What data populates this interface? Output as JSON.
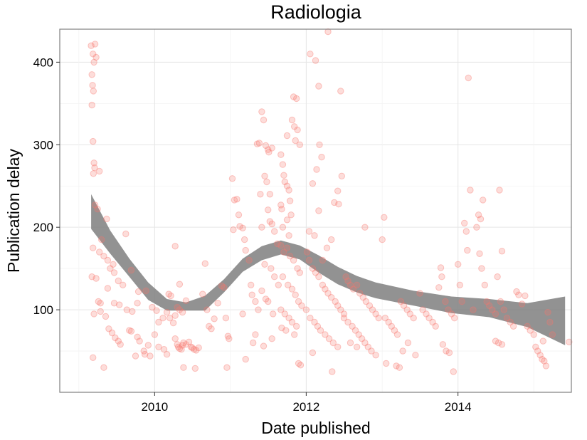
{
  "chart_data": {
    "type": "scatter",
    "title": "Radiologia",
    "xlabel": "Date published",
    "ylabel": "Publication delay",
    "x_axis_type": "date",
    "xlim": [
      "2008-10-01",
      "2015-07-01"
    ],
    "ylim": [
      0,
      440
    ],
    "x_ticks": [
      {
        "value": "2010-01-01",
        "label": "2010"
      },
      {
        "value": "2012-01-01",
        "label": "2012"
      },
      {
        "value": "2014-01-01",
        "label": "2014"
      }
    ],
    "y_ticks": [
      {
        "value": 100,
        "label": "100"
      },
      {
        "value": 200,
        "label": "200"
      },
      {
        "value": 300,
        "label": "300"
      },
      {
        "value": 400,
        "label": "400"
      }
    ],
    "grid": true,
    "legend": "none",
    "point_color": "#f8766d",
    "point_opacity": 0.25,
    "ribbon_color": "#7f7f7f",
    "smooth": {
      "x": [
        "2009-03-01",
        "2009-06-01",
        "2009-09-01",
        "2009-12-01",
        "2010-03-01",
        "2010-06-01",
        "2010-09-01",
        "2010-12-01",
        "2011-03-01",
        "2011-06-01",
        "2011-09-01",
        "2011-12-01",
        "2012-03-01",
        "2012-06-01",
        "2012-09-01",
        "2012-12-01",
        "2013-06-01",
        "2013-12-01",
        "2014-06-01",
        "2014-12-01",
        "2015-06-01"
      ],
      "lower": [
        198,
        168,
        140,
        112,
        99,
        99,
        99,
        121,
        146,
        160,
        167,
        161,
        145,
        131,
        121,
        114,
        105,
        96,
        91,
        79,
        57
      ],
      "upper": [
        240,
        196,
        162,
        133,
        113,
        109,
        117,
        137,
        162,
        177,
        184,
        178,
        166,
        152,
        141,
        133,
        123,
        116,
        113,
        108,
        116
      ]
    },
    "points": [
      [
        "2009-03-01",
        420
      ],
      [
        "2009-03-10",
        410
      ],
      [
        "2009-03-15",
        400
      ],
      [
        "2009-03-05",
        385
      ],
      [
        "2009-03-08",
        372
      ],
      [
        "2009-03-12",
        365
      ],
      [
        "2009-03-05",
        348
      ],
      [
        "2009-03-20",
        422
      ],
      [
        "2009-03-25",
        406
      ],
      [
        "2009-03-10",
        304
      ],
      [
        "2009-03-15",
        278
      ],
      [
        "2009-03-18",
        272
      ],
      [
        "2009-03-12",
        265
      ],
      [
        "2009-04-10",
        268
      ],
      [
        "2009-03-20",
        227
      ],
      [
        "2009-04-01",
        222
      ],
      [
        "2009-05-15",
        210
      ],
      [
        "2009-03-10",
        175
      ],
      [
        "2009-04-10",
        170
      ],
      [
        "2009-05-01",
        165
      ],
      [
        "2009-05-20",
        160
      ],
      [
        "2009-06-15",
        155
      ],
      [
        "2009-04-20",
        185
      ],
      [
        "2009-08-15",
        192
      ],
      [
        "2009-03-05",
        140
      ],
      [
        "2009-03-25",
        138
      ],
      [
        "2009-04-05",
        110
      ],
      [
        "2009-04-15",
        108
      ],
      [
        "2009-06-01",
        150
      ],
      [
        "2009-06-20",
        145
      ],
      [
        "2009-07-10",
        135
      ],
      [
        "2009-08-01",
        130
      ],
      [
        "2009-09-10",
        148
      ],
      [
        "2009-03-15",
        95
      ],
      [
        "2009-04-15",
        98
      ],
      [
        "2009-05-10",
        92
      ],
      [
        "2009-05-20",
        126
      ],
      [
        "2009-06-20",
        108
      ],
      [
        "2009-07-15",
        106
      ],
      [
        "2009-08-20",
        100
      ],
      [
        "2009-09-15",
        98
      ],
      [
        "2009-10-10",
        108
      ],
      [
        "2009-05-25",
        77
      ],
      [
        "2009-06-10",
        72
      ],
      [
        "2009-06-25",
        66
      ],
      [
        "2009-07-10",
        62
      ],
      [
        "2009-07-20",
        58
      ],
      [
        "2009-09-01",
        75
      ],
      [
        "2009-09-10",
        74
      ],
      [
        "2009-10-10",
        67
      ],
      [
        "2009-10-20",
        62
      ],
      [
        "2009-11-10",
        50
      ],
      [
        "2009-11-15",
        46
      ],
      [
        "2009-12-01",
        57
      ],
      [
        "2009-12-10",
        44
      ],
      [
        "2009-03-10",
        42
      ],
      [
        "2009-05-01",
        30
      ],
      [
        "2009-10-01",
        44
      ],
      [
        "2009-10-15",
        122
      ],
      [
        "2009-11-20",
        123
      ],
      [
        "2009-12-20",
        103
      ],
      [
        "2010-01-10",
        99
      ],
      [
        "2010-01-20",
        85
      ],
      [
        "2010-02-10",
        90
      ],
      [
        "2010-03-01",
        97
      ],
      [
        "2010-03-10",
        119
      ],
      [
        "2010-03-20",
        117
      ],
      [
        "2010-04-10",
        177
      ],
      [
        "2010-05-01",
        131
      ],
      [
        "2010-06-01",
        111
      ],
      [
        "2010-01-01",
        70
      ],
      [
        "2010-01-20",
        55
      ],
      [
        "2010-02-15",
        52
      ],
      [
        "2010-03-01",
        46
      ],
      [
        "2010-03-15",
        90
      ],
      [
        "2010-04-01",
        84
      ],
      [
        "2010-04-10",
        93
      ],
      [
        "2010-04-20",
        103
      ],
      [
        "2010-05-01",
        100
      ],
      [
        "2010-05-15",
        97
      ],
      [
        "2010-04-10",
        65
      ],
      [
        "2010-04-20",
        58
      ],
      [
        "2010-04-25",
        55
      ],
      [
        "2010-05-01",
        53
      ],
      [
        "2010-05-10",
        52
      ],
      [
        "2010-05-15",
        57
      ],
      [
        "2010-05-20",
        60
      ],
      [
        "2010-06-01",
        58
      ],
      [
        "2010-06-15",
        61
      ],
      [
        "2010-06-25",
        55
      ],
      [
        "2010-07-01",
        54
      ],
      [
        "2010-07-10",
        52
      ],
      [
        "2010-07-20",
        51
      ],
      [
        "2010-08-01",
        54
      ],
      [
        "2010-05-20",
        30
      ],
      [
        "2010-07-15",
        29
      ],
      [
        "2010-09-01",
        156
      ],
      [
        "2010-08-20",
        119
      ],
      [
        "2010-09-10",
        100
      ],
      [
        "2010-09-20",
        80
      ],
      [
        "2010-10-01",
        77
      ],
      [
        "2010-10-15",
        89
      ],
      [
        "2010-11-01",
        108
      ],
      [
        "2010-11-20",
        129
      ],
      [
        "2010-12-01",
        127
      ],
      [
        "2010-12-10",
        90
      ],
      [
        "2010-12-20",
        68
      ],
      [
        "2010-12-25",
        65
      ],
      [
        "2010-12-15",
        30
      ],
      [
        "2011-01-10",
        259
      ],
      [
        "2011-01-20",
        233
      ],
      [
        "2011-02-01",
        234
      ],
      [
        "2011-02-10",
        215
      ],
      [
        "2011-01-15",
        197
      ],
      [
        "2011-02-15",
        201
      ],
      [
        "2011-03-01",
        199
      ],
      [
        "2011-03-10",
        185
      ],
      [
        "2011-03-15",
        172
      ],
      [
        "2011-04-01",
        160
      ],
      [
        "2011-04-10",
        130
      ],
      [
        "2011-04-15",
        118
      ],
      [
        "2011-05-01",
        110
      ],
      [
        "2011-05-15",
        100
      ],
      [
        "2011-03-01",
        95
      ],
      [
        "2011-04-20",
        60
      ],
      [
        "2011-03-15",
        40
      ],
      [
        "2011-05-10",
        301
      ],
      [
        "2011-05-20",
        302
      ],
      [
        "2011-06-01",
        340
      ],
      [
        "2011-06-10",
        330
      ],
      [
        "2011-06-20",
        299
      ],
      [
        "2011-07-01",
        294
      ],
      [
        "2011-07-05",
        291
      ],
      [
        "2011-07-20",
        296
      ],
      [
        "2011-06-15",
        262
      ],
      [
        "2011-06-25",
        255
      ],
      [
        "2011-07-10",
        240
      ],
      [
        "2011-05-25",
        240
      ],
      [
        "2011-07-01",
        221
      ],
      [
        "2011-07-10",
        207
      ],
      [
        "2011-07-20",
        204
      ],
      [
        "2011-06-01",
        200
      ],
      [
        "2011-08-01",
        195
      ],
      [
        "2011-08-15",
        180
      ],
      [
        "2011-06-15",
        155
      ],
      [
        "2011-07-15",
        150
      ],
      [
        "2011-08-01",
        140
      ],
      [
        "2011-08-20",
        130
      ],
      [
        "2011-06-01",
        123
      ],
      [
        "2011-06-20",
        113
      ],
      [
        "2011-07-01",
        110
      ],
      [
        "2011-07-25",
        95
      ],
      [
        "2011-05-01",
        70
      ],
      [
        "2011-06-10",
        56
      ],
      [
        "2011-07-20",
        65
      ],
      [
        "2011-10-01",
        311
      ],
      [
        "2011-09-01",
        288
      ],
      [
        "2011-09-10",
        276
      ],
      [
        "2011-09-15",
        263
      ],
      [
        "2011-09-20",
        255
      ],
      [
        "2011-10-01",
        250
      ],
      [
        "2011-10-10",
        245
      ],
      [
        "2011-10-15",
        232
      ],
      [
        "2011-09-01",
        227
      ],
      [
        "2011-09-05",
        222
      ],
      [
        "2011-10-20",
        215
      ],
      [
        "2011-10-01",
        209
      ],
      [
        "2011-09-10",
        200
      ],
      [
        "2011-10-10",
        190
      ],
      [
        "2011-11-01",
        358
      ],
      [
        "2011-11-15",
        356
      ],
      [
        "2011-10-25",
        330
      ],
      [
        "2011-11-05",
        322
      ],
      [
        "2011-11-20",
        318
      ],
      [
        "2011-11-10",
        305
      ],
      [
        "2011-12-01",
        300
      ],
      [
        "2011-09-01",
        178
      ],
      [
        "2011-09-15",
        170
      ],
      [
        "2011-10-01",
        175
      ],
      [
        "2011-10-15",
        165
      ],
      [
        "2011-11-01",
        160
      ],
      [
        "2011-11-20",
        150
      ],
      [
        "2011-12-01",
        145
      ],
      [
        "2011-09-10",
        140
      ],
      [
        "2011-10-05",
        130
      ],
      [
        "2011-10-25",
        125
      ],
      [
        "2011-11-10",
        118
      ],
      [
        "2011-11-25",
        110
      ],
      [
        "2011-12-10",
        105
      ],
      [
        "2011-09-01",
        100
      ],
      [
        "2011-09-20",
        95
      ],
      [
        "2011-10-10",
        90
      ],
      [
        "2011-10-25",
        85
      ],
      [
        "2011-11-15",
        80
      ],
      [
        "2011-09-05",
        78
      ],
      [
        "2011-09-25",
        75
      ],
      [
        "2011-11-05",
        70
      ],
      [
        "2011-11-25",
        35
      ],
      [
        "2011-12-05",
        33
      ],
      [
        "2012-01-20",
        410
      ],
      [
        "2012-02-15",
        402
      ],
      [
        "2012-03-01",
        371
      ],
      [
        "2012-03-05",
        300
      ],
      [
        "2012-03-15",
        285
      ],
      [
        "2012-02-01",
        253
      ],
      [
        "2012-02-20",
        270
      ],
      [
        "2012-03-01",
        220
      ],
      [
        "2012-01-15",
        195
      ],
      [
        "2012-02-10",
        190
      ],
      [
        "2012-04-15",
        437
      ],
      [
        "2012-06-15",
        365
      ],
      [
        "2012-06-20",
        262
      ],
      [
        "2012-06-01",
        244
      ],
      [
        "2012-05-15",
        230
      ],
      [
        "2012-06-05",
        228
      ],
      [
        "2012-05-01",
        185
      ],
      [
        "2012-04-10",
        175
      ],
      [
        "2012-03-20",
        160
      ],
      [
        "2012-01-05",
        170
      ],
      [
        "2012-01-15",
        160
      ],
      [
        "2012-02-01",
        150
      ],
      [
        "2012-02-15",
        145
      ],
      [
        "2012-03-01",
        140
      ],
      [
        "2012-03-20",
        130
      ],
      [
        "2012-04-01",
        125
      ],
      [
        "2012-04-15",
        120
      ],
      [
        "2012-05-01",
        115
      ],
      [
        "2012-05-20",
        110
      ],
      [
        "2012-06-01",
        105
      ],
      [
        "2012-06-15",
        100
      ],
      [
        "2012-07-01",
        95
      ],
      [
        "2012-01-01",
        100
      ],
      [
        "2012-01-20",
        90
      ],
      [
        "2012-02-10",
        85
      ],
      [
        "2012-02-25",
        80
      ],
      [
        "2012-03-10",
        75
      ],
      [
        "2012-04-01",
        70
      ],
      [
        "2012-04-20",
        65
      ],
      [
        "2012-05-10",
        60
      ],
      [
        "2012-06-01",
        55
      ],
      [
        "2012-02-01",
        48
      ],
      [
        "2012-05-05",
        25
      ],
      [
        "2012-07-10",
        140
      ],
      [
        "2012-07-20",
        135
      ],
      [
        "2012-08-01",
        130
      ],
      [
        "2012-08-15",
        125
      ],
      [
        "2012-09-01",
        130
      ],
      [
        "2012-09-15",
        120
      ],
      [
        "2012-10-01",
        115
      ],
      [
        "2012-10-10",
        200
      ],
      [
        "2012-10-15",
        110
      ],
      [
        "2012-11-01",
        105
      ],
      [
        "2012-11-15",
        100
      ],
      [
        "2012-12-01",
        95
      ],
      [
        "2012-12-15",
        90
      ],
      [
        "2012-07-01",
        90
      ],
      [
        "2012-07-20",
        85
      ],
      [
        "2012-08-10",
        80
      ],
      [
        "2012-08-25",
        75
      ],
      [
        "2012-09-10",
        70
      ],
      [
        "2012-09-25",
        65
      ],
      [
        "2012-10-10",
        60
      ],
      [
        "2012-10-25",
        55
      ],
      [
        "2012-11-10",
        50
      ],
      [
        "2012-12-01",
        45
      ],
      [
        "2012-08-01",
        60
      ],
      [
        "2012-09-01",
        55
      ],
      [
        "2013-01-01",
        185
      ],
      [
        "2013-01-10",
        212
      ],
      [
        "2013-01-15",
        90
      ],
      [
        "2013-02-01",
        85
      ],
      [
        "2013-02-15",
        80
      ],
      [
        "2013-03-01",
        75
      ],
      [
        "2013-03-15",
        70
      ],
      [
        "2013-04-01",
        110
      ],
      [
        "2013-04-15",
        105
      ],
      [
        "2013-05-01",
        100
      ],
      [
        "2013-05-15",
        95
      ],
      [
        "2013-06-01",
        90
      ],
      [
        "2013-01-20",
        35
      ],
      [
        "2013-03-10",
        32
      ],
      [
        "2013-03-25",
        30
      ],
      [
        "2013-04-10",
        50
      ],
      [
        "2013-05-05",
        60
      ],
      [
        "2013-06-10",
        45
      ],
      [
        "2013-07-01",
        120
      ],
      [
        "2013-07-15",
        100
      ],
      [
        "2013-08-01",
        95
      ],
      [
        "2013-08-15",
        90
      ],
      [
        "2013-09-01",
        85
      ],
      [
        "2013-09-15",
        80
      ],
      [
        "2013-10-01",
        127
      ],
      [
        "2013-10-10",
        151
      ],
      [
        "2013-10-15",
        140
      ],
      [
        "2013-11-01",
        110
      ],
      [
        "2013-11-15",
        100
      ],
      [
        "2013-12-01",
        95
      ],
      [
        "2013-12-15",
        90
      ],
      [
        "2013-10-20",
        58
      ],
      [
        "2013-11-05",
        50
      ],
      [
        "2013-11-20",
        48
      ],
      [
        "2013-12-10",
        25
      ],
      [
        "2014-01-01",
        155
      ],
      [
        "2014-01-10",
        130
      ],
      [
        "2014-01-20",
        110
      ],
      [
        "2014-02-01",
        205
      ],
      [
        "2014-02-10",
        195
      ],
      [
        "2014-02-15",
        172
      ],
      [
        "2014-02-20",
        381
      ],
      [
        "2014-03-01",
        245
      ],
      [
        "2014-03-15",
        100
      ],
      [
        "2014-04-01",
        200
      ],
      [
        "2014-04-10",
        215
      ],
      [
        "2014-04-20",
        210
      ],
      [
        "2014-05-01",
        233
      ],
      [
        "2014-04-15",
        168
      ],
      [
        "2014-04-25",
        150
      ],
      [
        "2014-05-10",
        130
      ],
      [
        "2014-05-20",
        110
      ],
      [
        "2014-06-01",
        105
      ],
      [
        "2014-06-15",
        100
      ],
      [
        "2014-07-01",
        95
      ],
      [
        "2014-07-20",
        245
      ],
      [
        "2014-08-01",
        171
      ],
      [
        "2014-07-10",
        140
      ],
      [
        "2014-07-25",
        110
      ],
      [
        "2014-08-10",
        100
      ],
      [
        "2014-08-25",
        90
      ],
      [
        "2014-09-10",
        85
      ],
      [
        "2014-09-25",
        80
      ],
      [
        "2014-10-10",
        122
      ],
      [
        "2014-10-20",
        118
      ],
      [
        "2014-11-05",
        107
      ],
      [
        "2014-11-20",
        117
      ],
      [
        "2014-07-01",
        62
      ],
      [
        "2014-07-15",
        60
      ],
      [
        "2014-08-01",
        58
      ],
      [
        "2014-12-01",
        80
      ],
      [
        "2014-12-15",
        75
      ],
      [
        "2015-01-01",
        70
      ],
      [
        "2015-01-10",
        55
      ],
      [
        "2015-01-20",
        50
      ],
      [
        "2015-02-01",
        45
      ],
      [
        "2015-02-10",
        40
      ],
      [
        "2015-02-20",
        38
      ],
      [
        "2015-03-01",
        32
      ],
      [
        "2015-02-15",
        62
      ],
      [
        "2015-03-10",
        97
      ],
      [
        "2015-03-20",
        85
      ],
      [
        "2015-04-01",
        70
      ],
      [
        "2015-06-20",
        61
      ]
    ]
  }
}
